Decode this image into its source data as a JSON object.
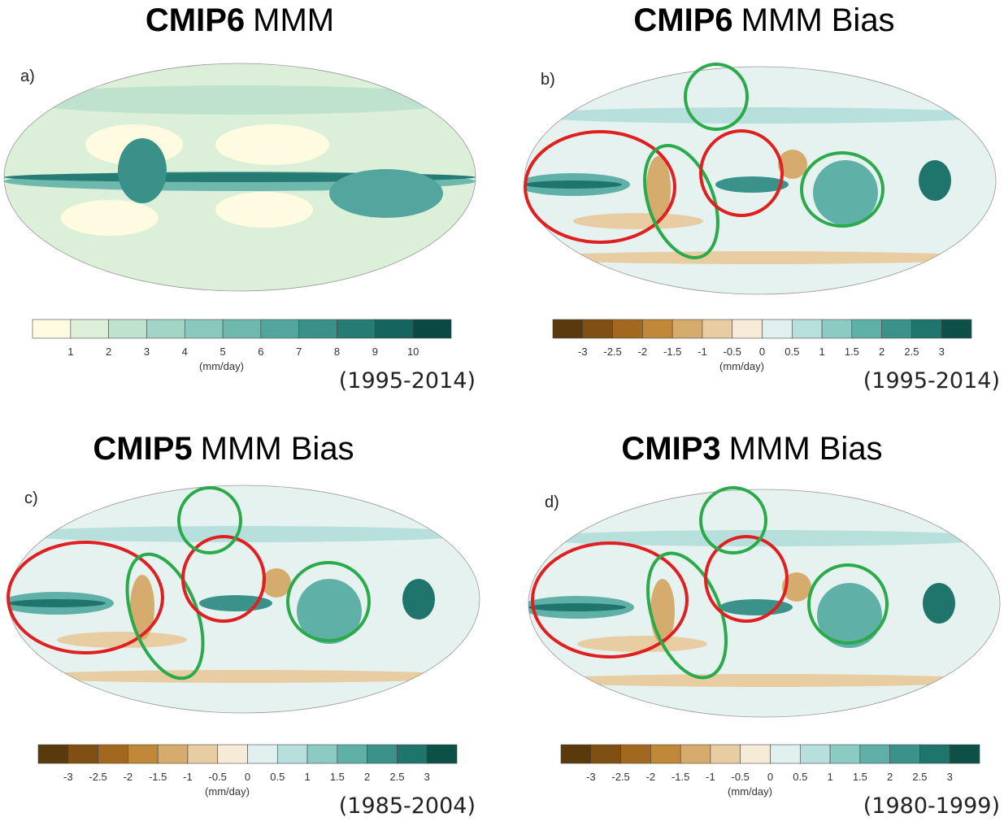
{
  "panels": [
    {
      "title_bold": "CMIP6",
      "title_rest": "MMM",
      "letter": "a)",
      "ticks": [
        "1",
        "2",
        "3",
        "4",
        "5",
        "6",
        "7",
        "8",
        "9",
        "10"
      ],
      "unit": "(mm/day)",
      "period": "(1995-2014)",
      "colors": [
        "#fefbe0",
        "#dcefd8",
        "#bfe2cf",
        "#a3d5c6",
        "#8ac8bd",
        "#6fb8ae",
        "#52a69e",
        "#3a918a",
        "#267b74",
        "#15645d",
        "#0a4a44"
      ]
    },
    {
      "title_bold": "CMIP6",
      "title_rest": "MMM Bias",
      "letter": "b)",
      "ticks": [
        "-3",
        "-2.5",
        "-2",
        "-1.5",
        "-1",
        "-0.5",
        "0",
        "0.5",
        "1",
        "1.5",
        "2",
        "2.5",
        "3"
      ],
      "unit": "(mm/day)",
      "period": "(1995-2014)",
      "colors": [
        "#5a3a0c",
        "#7f4f13",
        "#a2681f",
        "#c08838",
        "#d6ab6e",
        "#e8cda3",
        "#f6ebd7",
        "#e0f0ef",
        "#b7e0dc",
        "#8ccbc4",
        "#5fb0a7",
        "#3a928a",
        "#1f746b",
        "#0d5048"
      ]
    },
    {
      "title_bold": "CMIP5",
      "title_rest": "MMM Bias",
      "letter": "c)",
      "ticks": [
        "-3",
        "-2.5",
        "-2",
        "-1.5",
        "-1",
        "-0.5",
        "0",
        "0.5",
        "1",
        "1.5",
        "2",
        "2.5",
        "3"
      ],
      "unit": "(mm/day)",
      "period": "(1985-2004)",
      "colors": [
        "#5a3a0c",
        "#7f4f13",
        "#a2681f",
        "#c08838",
        "#d6ab6e",
        "#e8cda3",
        "#f6ebd7",
        "#e0f0ef",
        "#b7e0dc",
        "#8ccbc4",
        "#5fb0a7",
        "#3a928a",
        "#1f746b",
        "#0d5048"
      ]
    },
    {
      "title_bold": "CMIP3",
      "title_rest": "MMM Bias",
      "letter": "d)",
      "ticks": [
        "-3",
        "-2.5",
        "-2",
        "-1.5",
        "-1",
        "-0.5",
        "0",
        "0.5",
        "1",
        "1.5",
        "2",
        "2.5",
        "3"
      ],
      "unit": "(mm/day)",
      "period": "(1980-1999)",
      "colors": [
        "#5a3a0c",
        "#7f4f13",
        "#a2681f",
        "#c08838",
        "#d6ab6e",
        "#e8cda3",
        "#f6ebd7",
        "#e0f0ef",
        "#b7e0dc",
        "#8ccbc4",
        "#5fb0a7",
        "#3a928a",
        "#1f746b",
        "#0d5048"
      ]
    }
  ]
}
